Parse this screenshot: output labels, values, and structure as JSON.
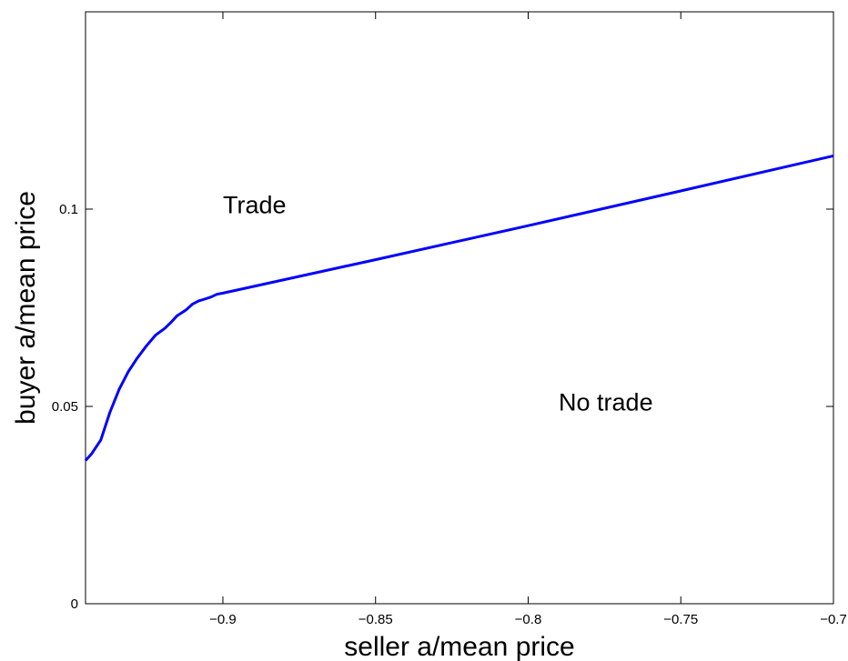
{
  "chart_data": {
    "type": "line",
    "title": "",
    "xlabel": "seller a/mean price",
    "ylabel": "buyer a/mean price",
    "xlim": [
      -0.945,
      -0.7
    ],
    "ylim": [
      0,
      0.15
    ],
    "xticks": [
      -0.9,
      -0.85,
      -0.8,
      -0.75,
      -0.7
    ],
    "xtick_labels": [
      "−0.9",
      "−0.85",
      "−0.8",
      "−0.75",
      "−0.7"
    ],
    "yticks": [
      0,
      0.05,
      0.1
    ],
    "ytick_labels": [
      "0",
      "0.05",
      "0.1"
    ],
    "grid": false,
    "line_color": "#0000ff",
    "series": [
      {
        "x": [
          -0.945,
          -0.943,
          -0.94,
          -0.937,
          -0.934,
          -0.931,
          -0.928,
          -0.925,
          -0.922,
          -0.919,
          -0.917,
          -0.915,
          -0.912,
          -0.91,
          -0.908,
          -0.906,
          -0.904,
          -0.902,
          -0.9,
          -0.85,
          -0.8,
          -0.75,
          -0.7
        ],
        "y": [
          0.0363,
          0.038,
          0.0415,
          0.0485,
          0.0543,
          0.0588,
          0.0623,
          0.0654,
          0.0681,
          0.0698,
          0.0713,
          0.073,
          0.0745,
          0.0759,
          0.0767,
          0.0772,
          0.0777,
          0.0784,
          0.0787,
          0.0872,
          0.0958,
          0.1046,
          0.1135
        ]
      }
    ],
    "annotations": [
      {
        "text": "Trade",
        "x": -0.9,
        "y": 0.099
      },
      {
        "text": "No trade",
        "x": -0.79,
        "y": 0.049
      }
    ]
  }
}
